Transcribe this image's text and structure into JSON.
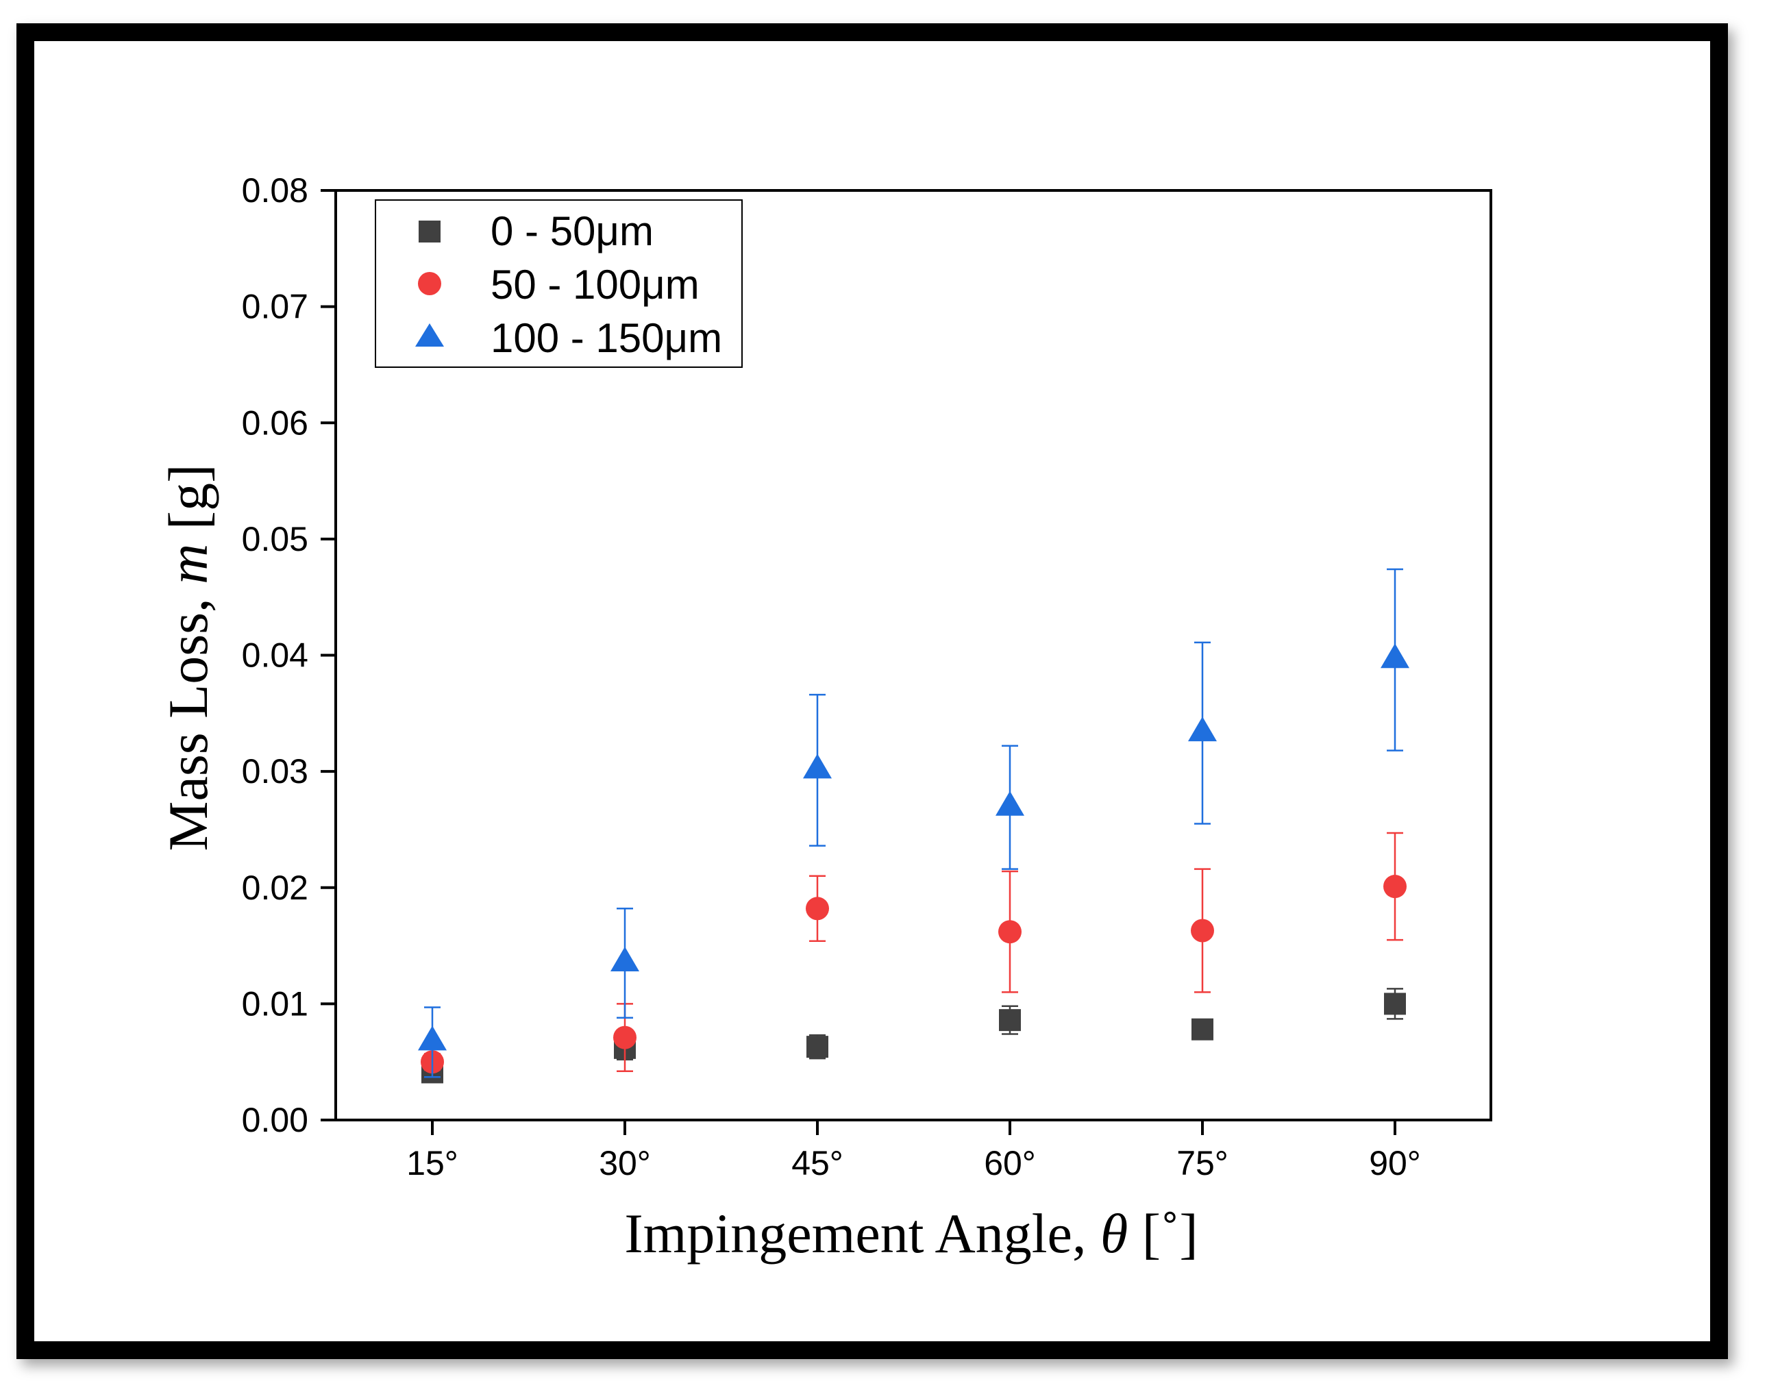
{
  "chart_data": {
    "type": "scatter",
    "title": "",
    "xlabel": "Impingement Angle, ",
    "xlabel_symbol": "θ",
    "xlabel_unit": " [˚]",
    "ylabel": "Mass Loss, ",
    "ylabel_symbol": "m",
    "ylabel_unit": " [g]",
    "categories": [
      "15°",
      "30°",
      "45°",
      "60°",
      "75°",
      "90°"
    ],
    "ylim": [
      0,
      0.08
    ],
    "yticks": [
      "0.00",
      "0.01",
      "0.02",
      "0.03",
      "0.04",
      "0.05",
      "0.06",
      "0.07",
      "0.08"
    ],
    "grid": false,
    "legend_position": "top-left",
    "series": [
      {
        "name": "0 - 50μm",
        "marker": "square",
        "color": "#404040",
        "values": [
          0.0041,
          0.0062,
          0.0063,
          0.0086,
          0.0078,
          0.01
        ],
        "errors": [
          0.0004,
          0.001,
          0.001,
          0.0012,
          0.0004,
          0.0013
        ]
      },
      {
        "name": "50 - 100μm",
        "marker": "circle",
        "color": "#f03c3c",
        "values": [
          0.005,
          0.0071,
          0.0182,
          0.0162,
          0.0163,
          0.0201
        ],
        "errors": [
          0.0007,
          0.0029,
          0.0028,
          0.0052,
          0.0053,
          0.0046
        ]
      },
      {
        "name": "100 - 150μm",
        "marker": "triangle",
        "color": "#1f6fde",
        "values": [
          0.0067,
          0.0135,
          0.0301,
          0.0269,
          0.0333,
          0.0396
        ],
        "errors": [
          0.003,
          0.0047,
          0.0065,
          0.0053,
          0.0078,
          0.0078
        ]
      }
    ]
  }
}
